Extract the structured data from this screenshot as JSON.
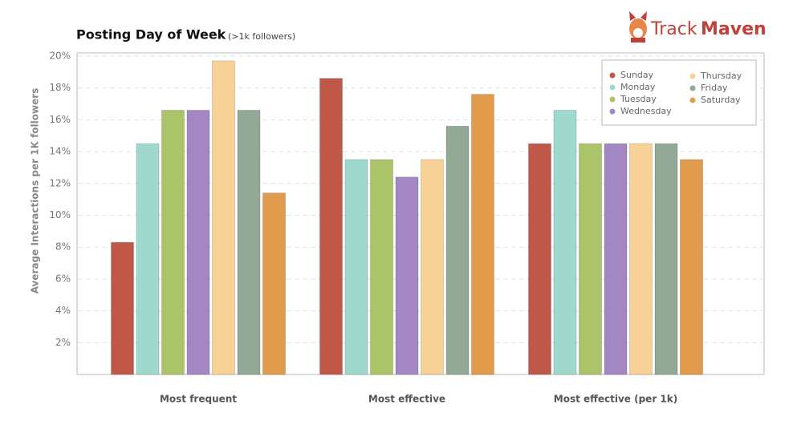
{
  "chart_data": {
    "type": "bar",
    "title": "Posting Day of Week",
    "subtitle": "(>1k followers)",
    "logo": {
      "part1": "Track",
      "part2": "Maven"
    },
    "y_label": "Average Interactions per 1K followers",
    "categories": [
      "Most frequent",
      "Most effective",
      "Most effective (per 1k)"
    ],
    "series": [
      {
        "name": "Sunday",
        "color": "#c0584a",
        "values": [
          8.3,
          18.6,
          14.5
        ]
      },
      {
        "name": "Monday",
        "color": "#9fd8cc",
        "values": [
          14.5,
          13.5,
          16.6
        ]
      },
      {
        "name": "Tuesday",
        "color": "#abc46a",
        "values": [
          16.6,
          13.5,
          14.5
        ]
      },
      {
        "name": "Wednesday",
        "color": "#a287c2",
        "values": [
          16.6,
          12.4,
          14.5
        ]
      },
      {
        "name": "Thursday",
        "color": "#f7d196",
        "values": [
          19.7,
          13.5,
          14.5
        ]
      },
      {
        "name": "Friday",
        "color": "#94a897",
        "values": [
          16.6,
          15.6,
          14.5
        ]
      },
      {
        "name": "Saturday",
        "color": "#e09c4c",
        "values": [
          11.4,
          17.6,
          13.5
        ]
      }
    ],
    "ylim": [
      0,
      20.2
    ],
    "yticks": [
      {
        "value": 2,
        "label": "2%"
      },
      {
        "value": 4,
        "label": "4%"
      },
      {
        "value": 6,
        "label": "6%"
      },
      {
        "value": 8,
        "label": "8%"
      },
      {
        "value": 10,
        "label": "10%"
      },
      {
        "value": 12,
        "label": "12%"
      },
      {
        "value": 14,
        "label": "14%"
      },
      {
        "value": 16,
        "label": "16%"
      },
      {
        "value": 18,
        "label": "18%"
      },
      {
        "value": 20,
        "label": "20%"
      }
    ],
    "grid": true,
    "legend": "top-right"
  }
}
